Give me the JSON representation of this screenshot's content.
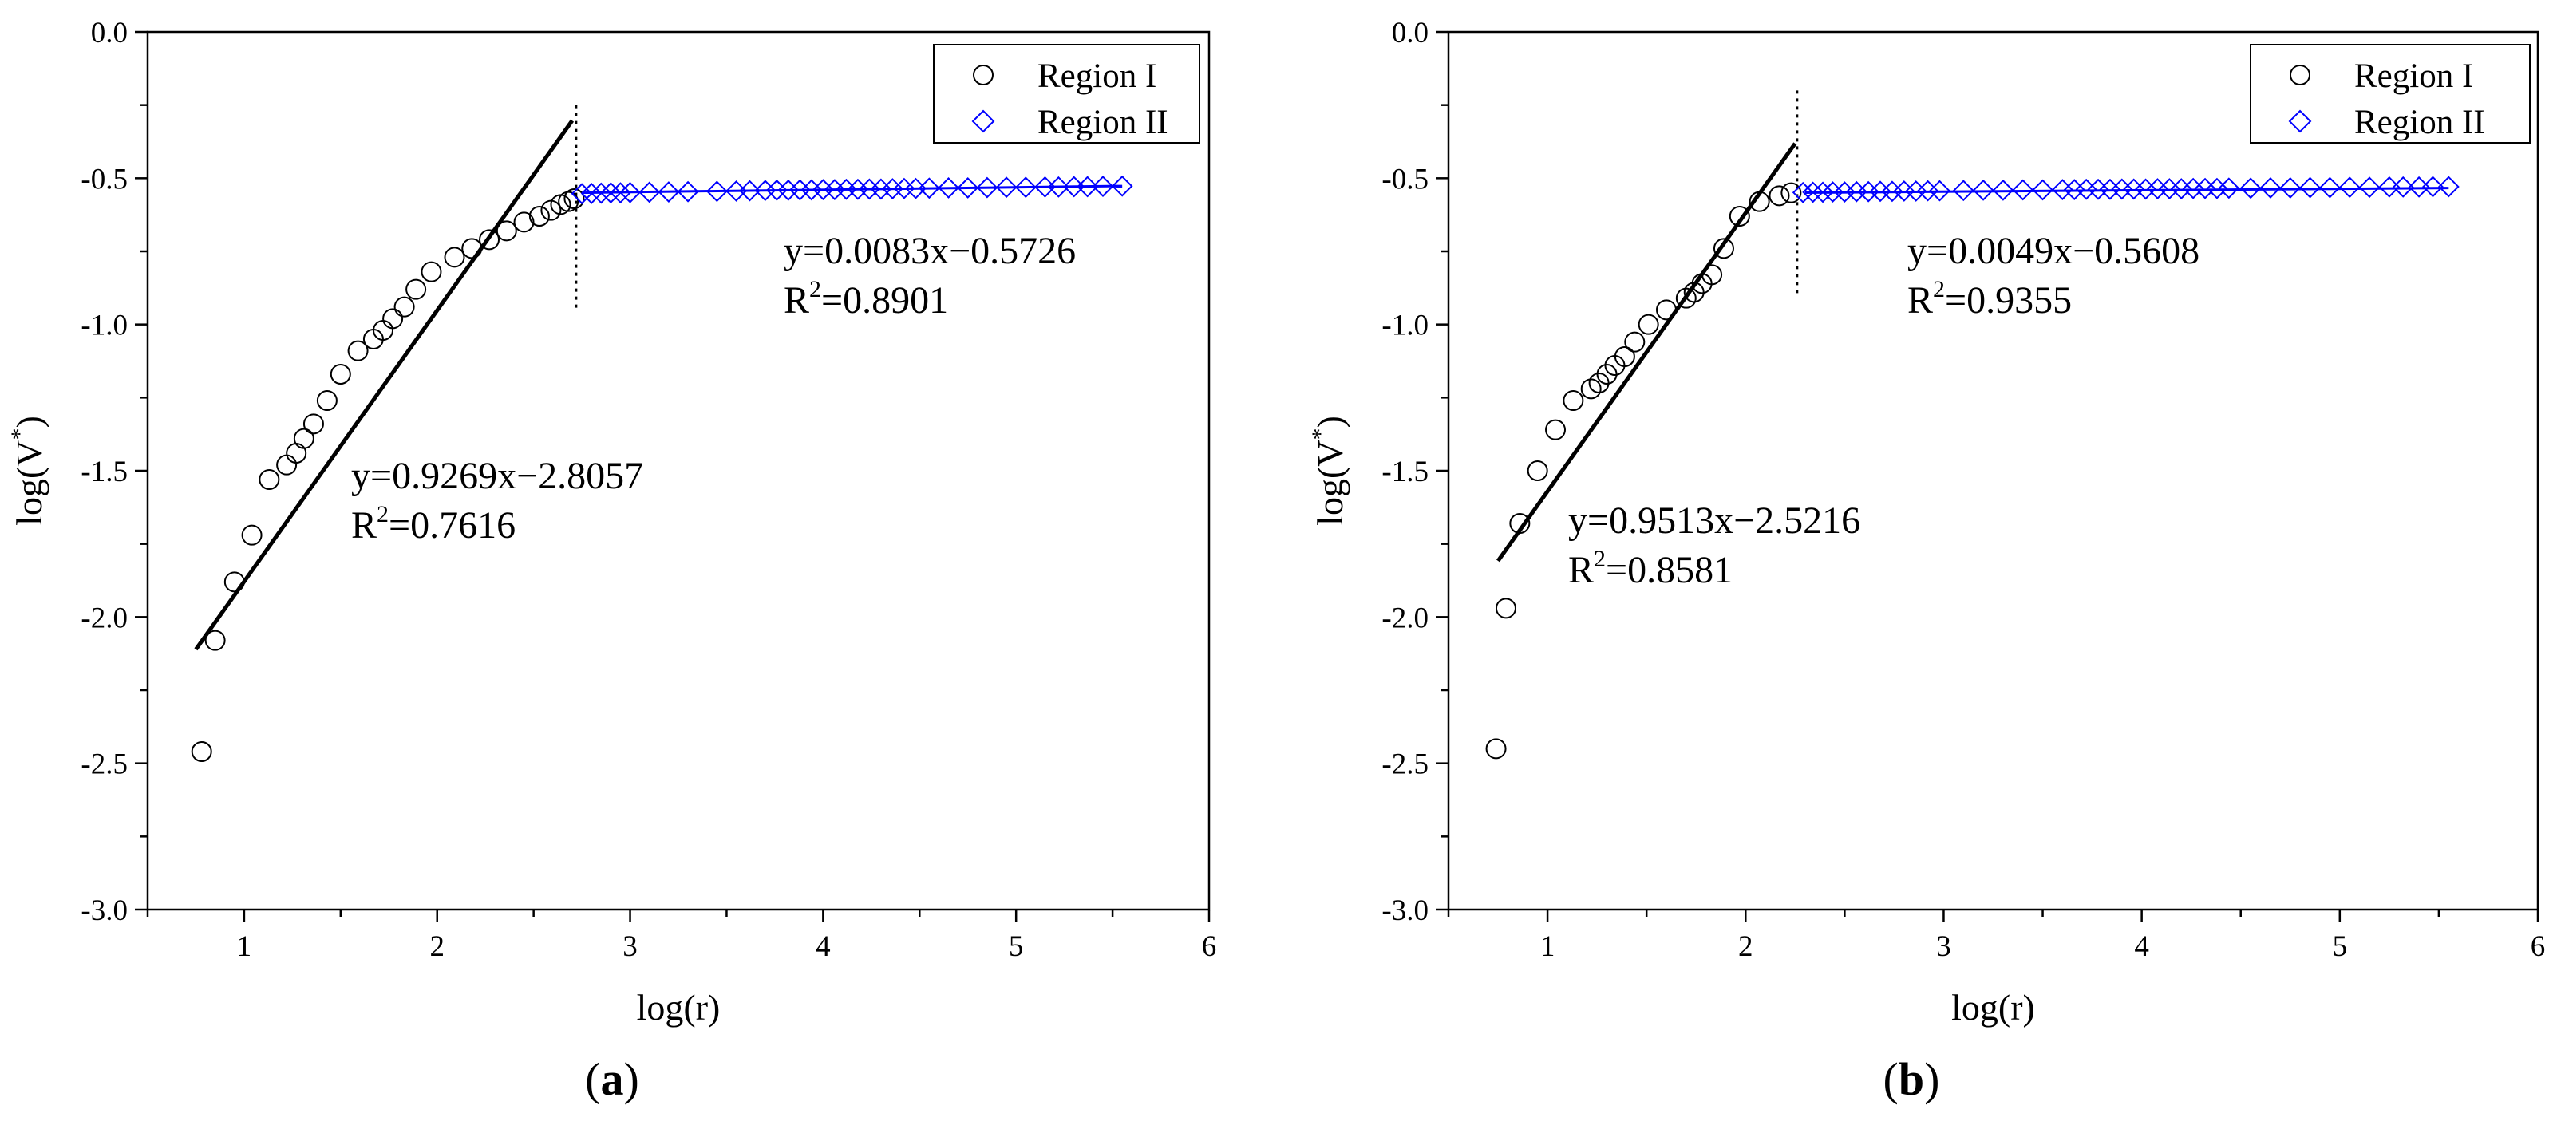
{
  "chart_data": [
    {
      "type": "scatter",
      "panel_label": "a",
      "xlabel": "log(r)",
      "ylabel_base": "log(V",
      "ylabel_sup": "*",
      "ylabel_close": ")",
      "xlim": [
        0.5,
        6
      ],
      "ylim": [
        -3.0,
        0.0
      ],
      "xticks": [
        1,
        2,
        3,
        4,
        5,
        6
      ],
      "yticks": [
        "0.0",
        "-0.5",
        "-1.0",
        "-1.5",
        "-2.0",
        "-2.5",
        "-3.0"
      ],
      "legend_position": "top-right",
      "series": [
        {
          "name": "Region I",
          "marker": "circle",
          "color": "#000000",
          "x": [
            0.78,
            0.85,
            0.95,
            1.04,
            1.13,
            1.22,
            1.27,
            1.31,
            1.36,
            1.43,
            1.5,
            1.59,
            1.67,
            1.72,
            1.77,
            1.83,
            1.89,
            1.97,
            2.09,
            2.18,
            2.27,
            2.36,
            2.45,
            2.53,
            2.59,
            2.64,
            2.68,
            2.71
          ],
          "y": [
            -2.46,
            -2.08,
            -1.88,
            -1.72,
            -1.53,
            -1.48,
            -1.44,
            -1.39,
            -1.34,
            -1.26,
            -1.17,
            -1.09,
            -1.05,
            -1.02,
            -0.98,
            -0.94,
            -0.88,
            -0.82,
            -0.77,
            -0.74,
            -0.71,
            -0.68,
            -0.65,
            -0.63,
            -0.61,
            -0.59,
            -0.58,
            -0.57
          ]
        },
        {
          "name": "Region II",
          "marker": "diamond",
          "color": "#0000ff",
          "x": [
            2.75,
            2.8,
            2.85,
            2.9,
            2.95,
            3.0,
            3.1,
            3.2,
            3.3,
            3.45,
            3.55,
            3.62,
            3.7,
            3.76,
            3.82,
            3.88,
            3.94,
            4.0,
            4.06,
            4.12,
            4.18,
            4.24,
            4.3,
            4.36,
            4.42,
            4.48,
            4.55,
            4.65,
            4.75,
            4.85,
            4.95,
            5.05,
            5.15,
            5.22,
            5.3,
            5.37,
            5.45,
            5.55
          ],
          "y": [
            -0.553,
            -0.552,
            -0.551,
            -0.55,
            -0.55,
            -0.549,
            -0.548,
            -0.547,
            -0.546,
            -0.545,
            -0.544,
            -0.543,
            -0.542,
            -0.541,
            -0.541,
            -0.54,
            -0.54,
            -0.539,
            -0.539,
            -0.538,
            -0.538,
            -0.537,
            -0.537,
            -0.536,
            -0.535,
            -0.535,
            -0.534,
            -0.533,
            -0.533,
            -0.532,
            -0.531,
            -0.531,
            -0.53,
            -0.53,
            -0.529,
            -0.529,
            -0.528,
            -0.527
          ]
        }
      ],
      "fits": [
        {
          "slope": 0.9269,
          "intercept": -2.8057,
          "x_range": [
            0.75,
            2.7
          ],
          "color": "#000000",
          "equation": "y=0.9269x−2.8057",
          "r2_prefix": "R",
          "r2_sup": "2",
          "r2_value": "=0.7616"
        },
        {
          "slope": 0.0083,
          "intercept": -0.5726,
          "x_range": [
            2.75,
            5.55
          ],
          "color": "#0000ff",
          "equation": "y=0.0083x−0.5726",
          "r2_prefix": "R",
          "r2_sup": "2",
          "r2_value": "=0.8901"
        }
      ],
      "boundary_x": 2.72,
      "boundary_y_range": [
        -0.95,
        -0.25
      ]
    },
    {
      "type": "scatter",
      "panel_label": "b",
      "xlabel": "log(r)",
      "ylabel_base": "log(V",
      "ylabel_sup": "*",
      "ylabel_close": ")",
      "xlim": [
        0.5,
        6
      ],
      "ylim": [
        -3.0,
        0.0
      ],
      "xticks": [
        1,
        2,
        3,
        4,
        5,
        6
      ],
      "yticks": [
        "0.0",
        "-0.5",
        "-1.0",
        "-1.5",
        "-2.0",
        "-2.5",
        "-3.0"
      ],
      "legend_position": "top-right",
      "series": [
        {
          "name": "Region I",
          "marker": "circle",
          "color": "#000000",
          "x": [
            0.74,
            0.79,
            0.86,
            0.95,
            1.04,
            1.13,
            1.22,
            1.26,
            1.3,
            1.34,
            1.39,
            1.44,
            1.51,
            1.6,
            1.7,
            1.74,
            1.78,
            1.83,
            1.89,
            1.97,
            2.07,
            2.17,
            2.23
          ],
          "y": [
            -2.45,
            -1.97,
            -1.68,
            -1.5,
            -1.36,
            -1.26,
            -1.22,
            -1.2,
            -1.17,
            -1.14,
            -1.11,
            -1.06,
            -1.0,
            -0.95,
            -0.91,
            -0.89,
            -0.86,
            -0.83,
            -0.74,
            -0.63,
            -0.58,
            -0.56,
            -0.55
          ]
        },
        {
          "name": "Region II",
          "marker": "diamond",
          "color": "#0000ff",
          "x": [
            2.29,
            2.34,
            2.39,
            2.44,
            2.5,
            2.56,
            2.62,
            2.68,
            2.74,
            2.8,
            2.86,
            2.92,
            2.98,
            3.1,
            3.2,
            3.3,
            3.4,
            3.5,
            3.6,
            3.66,
            3.72,
            3.78,
            3.84,
            3.9,
            3.96,
            4.02,
            4.08,
            4.14,
            4.2,
            4.26,
            4.32,
            4.38,
            4.44,
            4.55,
            4.65,
            4.75,
            4.85,
            4.95,
            5.05,
            5.15,
            5.25,
            5.32,
            5.4,
            5.47,
            5.55
          ],
          "y": [
            -0.549,
            -0.548,
            -0.548,
            -0.547,
            -0.547,
            -0.546,
            -0.546,
            -0.545,
            -0.545,
            -0.544,
            -0.544,
            -0.543,
            -0.543,
            -0.542,
            -0.541,
            -0.541,
            -0.54,
            -0.54,
            -0.539,
            -0.539,
            -0.538,
            -0.538,
            -0.538,
            -0.537,
            -0.537,
            -0.537,
            -0.536,
            -0.536,
            -0.536,
            -0.535,
            -0.535,
            -0.535,
            -0.534,
            -0.534,
            -0.533,
            -0.533,
            -0.532,
            -0.532,
            -0.531,
            -0.531,
            -0.53,
            -0.53,
            -0.53,
            -0.529,
            -0.529
          ]
        }
      ],
      "fits": [
        {
          "slope": 0.9513,
          "intercept": -2.5216,
          "x_range": [
            0.75,
            2.25
          ],
          "color": "#000000",
          "equation": "y=0.9513x−2.5216",
          "r2_prefix": "R",
          "r2_sup": "2",
          "r2_value": "=0.8581"
        },
        {
          "slope": 0.0049,
          "intercept": -0.5608,
          "x_range": [
            2.3,
            5.55
          ],
          "color": "#0000ff",
          "equation": "y=0.0049x−0.5608",
          "r2_prefix": "R",
          "r2_sup": "2",
          "r2_value": "=0.9355"
        }
      ],
      "boundary_x": 2.26,
      "boundary_y_range": [
        -0.9,
        -0.2
      ]
    }
  ]
}
